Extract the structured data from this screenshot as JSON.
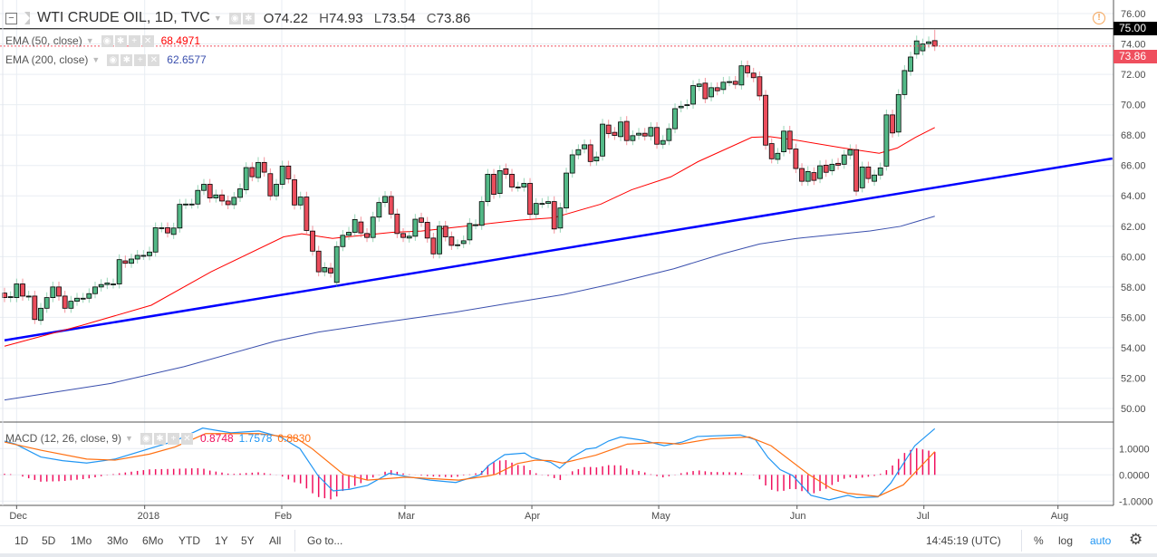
{
  "header": {
    "symbol": "WTI CRUDE OIL, 1D, TVC",
    "open_label": "O",
    "open": "74.22",
    "high_label": "H",
    "high": "74.93",
    "low_label": "L",
    "low": "73.54",
    "close_label": "C",
    "close": "73.86"
  },
  "indicators": {
    "ema50": {
      "label": "EMA (50, close)",
      "value": "68.4971",
      "color": "#ff0000"
    },
    "ema200": {
      "label": "EMA (200, close)",
      "value": "62.6577",
      "color": "#3a4fad"
    },
    "macd": {
      "label": "MACD (12, 26, close, 9)",
      "hist_value": "0.8748",
      "macd_value": "1.7578",
      "signal_value": "0.8830",
      "hist_color": "#f0105e",
      "macd_color": "#2196f3",
      "signal_color": "#ff7012"
    }
  },
  "price_axis": {
    "labels": [
      "76.00",
      "74.00",
      "72.00",
      "70.00",
      "68.00",
      "66.00",
      "64.00",
      "62.00",
      "60.00",
      "58.00",
      "56.00",
      "54.00",
      "52.00",
      "50.00"
    ],
    "high_line_label": "75.00",
    "last_price_label": "73.86"
  },
  "macd_axis": {
    "labels": [
      "1.0000",
      "0.0000",
      "-1.0000"
    ]
  },
  "time_axis": [
    {
      "label": "Dec",
      "day": 2
    },
    {
      "label": "2018",
      "day": 23.2
    },
    {
      "label": "Feb",
      "day": 45.9
    },
    {
      "label": "Mar",
      "day": 66.3
    },
    {
      "label": "Apr",
      "day": 87.3
    },
    {
      "label": "May",
      "day": 108.3
    },
    {
      "label": "Jun",
      "day": 131.2
    },
    {
      "label": "Jul",
      "day": 152.2
    },
    {
      "label": "Aug",
      "day": 174.4
    }
  ],
  "toolbar": {
    "ranges": [
      "1D",
      "5D",
      "1Mo",
      "3Mo",
      "6Mo",
      "YTD",
      "1Y",
      "5Y",
      "All"
    ],
    "goto": "Go to...",
    "clock": "14:45:19 (UTC)",
    "percent": "%",
    "log": "log",
    "auto": "auto"
  },
  "colors": {
    "up": "#53b987",
    "down": "#eb4d5c",
    "trendline": "#0000ff",
    "last_price": "#ef4f5e",
    "accent": "#2196f3"
  },
  "chart_data": [
    {
      "type": "candlestick",
      "title": "WTI CRUDE OIL, 1D, TVC",
      "ylim": [
        49,
        76.5
      ],
      "grid": true,
      "note_fields": "ohlc given as [open, close] per trading day; last bar full OHLC in header",
      "ohlc": [
        [
          57.6,
          57.3
        ],
        [
          57.3,
          57.36
        ],
        [
          57.3,
          58.2
        ],
        [
          58.2,
          57.4
        ],
        [
          57.4,
          57.4
        ],
        [
          57.4,
          55.86
        ],
        [
          55.8,
          56.6
        ],
        [
          56.6,
          57.3
        ],
        [
          57.3,
          58.0
        ],
        [
          58.0,
          57.4
        ],
        [
          57.4,
          56.6
        ],
        [
          56.6,
          57.06
        ],
        [
          57.06,
          57.26
        ],
        [
          57.26,
          57.26
        ],
        [
          57.26,
          57.56
        ],
        [
          57.56,
          58.0
        ],
        [
          58.0,
          58.16
        ],
        [
          58.16,
          58.26
        ],
        [
          58.2,
          58.2
        ],
        [
          58.2,
          59.8
        ],
        [
          59.72,
          59.56
        ],
        [
          59.56,
          59.84
        ],
        [
          59.84,
          60.08
        ],
        [
          60.08,
          60.08
        ],
        [
          60.06,
          60.3
        ],
        [
          60.3,
          61.9
        ],
        [
          61.9,
          61.9
        ],
        [
          61.9,
          61.56
        ],
        [
          61.46,
          61.88
        ],
        [
          61.88,
          63.44
        ],
        [
          63.44,
          63.46
        ],
        [
          63.46,
          63.46
        ],
        [
          63.46,
          64.36
        ],
        [
          64.36,
          64.76
        ],
        [
          64.76,
          63.86
        ],
        [
          63.86,
          64.06
        ],
        [
          64.06,
          63.66
        ],
        [
          63.66,
          63.42
        ],
        [
          63.42,
          63.9
        ],
        [
          63.9,
          64.46
        ],
        [
          64.4,
          65.86
        ],
        [
          65.86,
          65.26
        ],
        [
          65.2,
          66.2
        ],
        [
          66.2,
          65.56
        ],
        [
          65.46,
          64.0
        ],
        [
          64.0,
          64.76
        ],
        [
          64.76,
          65.96
        ],
        [
          65.96,
          65.12
        ],
        [
          65.06,
          63.4
        ],
        [
          63.4,
          63.92
        ],
        [
          63.92,
          61.72
        ],
        [
          61.68,
          60.36
        ],
        [
          60.36,
          59.0
        ],
        [
          59.0,
          59.28
        ],
        [
          59.24,
          58.92
        ],
        [
          58.3,
          60.66
        ],
        [
          60.66,
          61.4
        ],
        [
          61.4,
          61.6
        ],
        [
          61.6,
          62.44
        ],
        [
          62.28,
          61.56
        ],
        [
          61.52,
          61.26
        ],
        [
          61.26,
          62.6
        ],
        [
          62.6,
          63.56
        ],
        [
          63.56,
          63.96
        ],
        [
          63.96,
          62.8
        ],
        [
          62.8,
          61.52
        ],
        [
          61.52,
          61.26
        ],
        [
          61.22,
          61.34
        ],
        [
          61.34,
          62.46
        ],
        [
          62.54,
          62.26
        ],
        [
          62.26,
          61.22
        ],
        [
          61.22,
          60.18
        ],
        [
          60.18,
          62.0
        ],
        [
          62.0,
          61.3
        ],
        [
          61.3,
          60.74
        ],
        [
          60.78,
          60.78
        ],
        [
          60.86,
          61.04
        ],
        [
          61.1,
          62.18
        ],
        [
          62.1,
          62.1
        ],
        [
          62.06,
          63.62
        ],
        [
          63.62,
          65.42
        ],
        [
          65.42,
          64.1
        ],
        [
          64.16,
          65.66
        ],
        [
          65.78,
          65.42
        ],
        [
          65.42,
          64.58
        ],
        [
          64.58,
          64.58
        ],
        [
          64.58,
          64.82
        ],
        [
          64.82,
          62.78
        ],
        [
          62.78,
          63.5
        ],
        [
          63.5,
          63.5
        ],
        [
          63.5,
          63.62
        ],
        [
          63.62,
          61.82
        ],
        [
          61.88,
          63.2
        ],
        [
          63.2,
          65.5
        ],
        [
          65.5,
          66.7
        ],
        [
          66.7,
          67.04
        ],
        [
          67.1,
          67.36
        ],
        [
          67.36,
          66.26
        ],
        [
          66.3,
          66.56
        ],
        [
          66.62,
          68.72
        ],
        [
          68.66,
          68.1
        ],
        [
          68.18,
          67.98
        ],
        [
          67.9,
          68.86
        ],
        [
          68.9,
          67.64
        ],
        [
          67.64,
          67.96
        ],
        [
          68.0,
          68.12
        ],
        [
          68.12,
          67.94
        ],
        [
          67.94,
          68.5
        ],
        [
          68.5,
          67.4
        ],
        [
          67.4,
          67.64
        ],
        [
          67.64,
          68.42
        ],
        [
          68.42,
          69.74
        ],
        [
          69.8,
          69.9
        ],
        [
          70.0,
          70.0
        ],
        [
          70.04,
          71.26
        ],
        [
          71.2,
          71.36
        ],
        [
          71.42,
          70.4
        ],
        [
          70.52,
          71.12
        ],
        [
          71.12,
          70.92
        ],
        [
          71.0,
          71.48
        ],
        [
          71.52,
          71.52
        ],
        [
          71.54,
          71.34
        ],
        [
          71.3,
          72.56
        ],
        [
          72.56,
          72.1
        ],
        [
          72.08,
          71.78
        ],
        [
          71.84,
          70.58
        ],
        [
          70.62,
          67.34
        ],
        [
          67.44,
          66.44
        ],
        [
          66.4,
          66.8
        ],
        [
          66.9,
          68.26
        ],
        [
          68.26,
          67.08
        ],
        [
          67.08,
          65.8
        ],
        [
          65.8,
          64.96
        ],
        [
          64.96,
          65.6
        ],
        [
          65.53,
          65.02
        ],
        [
          65.14,
          65.98
        ],
        [
          66.02,
          65.55
        ],
        [
          65.66,
          66.08
        ],
        [
          66.14,
          66.02
        ],
        [
          66.08,
          66.69
        ],
        [
          66.69,
          67.04
        ],
        [
          67.04,
          64.31
        ],
        [
          64.53,
          65.9
        ],
        [
          65.9,
          65.14
        ],
        [
          64.96,
          65.37
        ],
        [
          65.37,
          65.84
        ],
        [
          65.96,
          69.33
        ],
        [
          69.33,
          68.14
        ],
        [
          68.2,
          70.67
        ],
        [
          70.67,
          72.25
        ],
        [
          72.2,
          73.14
        ],
        [
          73.33,
          74.2
        ],
        [
          73.55,
          74.0
        ],
        [
          74.02,
          74.14
        ],
        [
          74.22,
          73.86
        ]
      ],
      "ema50": [
        [
          0,
          54.1
        ],
        [
          12.8,
          55.47
        ],
        [
          24.3,
          56.8
        ],
        [
          34.2,
          59.0
        ],
        [
          46.2,
          61.3
        ],
        [
          49.2,
          61.5
        ],
        [
          54.3,
          61.2
        ],
        [
          64.2,
          61.6
        ],
        [
          69,
          61.68
        ],
        [
          85.2,
          62.4
        ],
        [
          90.8,
          62.55
        ],
        [
          98.7,
          63.45
        ],
        [
          103.8,
          64.4
        ],
        [
          110.3,
          65.25
        ],
        [
          114.8,
          66.25
        ],
        [
          123.7,
          67.85
        ],
        [
          126.7,
          67.9
        ],
        [
          131.3,
          67.65
        ],
        [
          138.8,
          67.15
        ],
        [
          144.8,
          66.8
        ],
        [
          147.8,
          67.15
        ],
        [
          150.8,
          67.85
        ],
        [
          154,
          68.5
        ]
      ],
      "ema200": [
        [
          0,
          50.56
        ],
        [
          17.6,
          51.65
        ],
        [
          29.7,
          52.75
        ],
        [
          44.8,
          54.43
        ],
        [
          52,
          55.03
        ],
        [
          62,
          55.63
        ],
        [
          74.3,
          56.32
        ],
        [
          83.4,
          56.92
        ],
        [
          92.5,
          57.5
        ],
        [
          100.6,
          58.2
        ],
        [
          110.8,
          59.2
        ],
        [
          119,
          60.2
        ],
        [
          125,
          60.83
        ],
        [
          131,
          61.19
        ],
        [
          143.3,
          61.69
        ],
        [
          148.3,
          61.99
        ],
        [
          154,
          62.66
        ]
      ],
      "trendline": [
        [
          0,
          54.49
        ],
        [
          183.4,
          66.46
        ]
      ],
      "high_line": 75.0,
      "last_price": 73.86
    },
    {
      "type": "line",
      "title": "MACD (12, 26, close, 9)",
      "ylim": [
        -1.2,
        1.9
      ],
      "macd": [
        [
          0,
          1.29
        ],
        [
          1.8,
          1.17
        ],
        [
          6,
          0.68
        ],
        [
          9.6,
          0.54
        ],
        [
          13.6,
          0.45
        ],
        [
          18.3,
          0.6
        ],
        [
          24,
          1.0
        ],
        [
          28.2,
          1.29
        ],
        [
          32.8,
          1.78
        ],
        [
          37.5,
          1.6
        ],
        [
          42.1,
          1.67
        ],
        [
          45.7,
          1.44
        ],
        [
          48.9,
          1.0
        ],
        [
          51.9,
          -0.03
        ],
        [
          54.4,
          -0.61
        ],
        [
          57.1,
          -0.55
        ],
        [
          60.1,
          -0.4
        ],
        [
          63.7,
          0.06
        ],
        [
          66.4,
          -0.06
        ],
        [
          70.5,
          -0.2
        ],
        [
          74.7,
          -0.29
        ],
        [
          78.7,
          0.0
        ],
        [
          80.2,
          0.37
        ],
        [
          82.8,
          0.77
        ],
        [
          86.1,
          0.83
        ],
        [
          87.3,
          0.66
        ],
        [
          90.4,
          0.48
        ],
        [
          91.9,
          0.25
        ],
        [
          93.9,
          0.66
        ],
        [
          96.3,
          0.98
        ],
        [
          97.9,
          1.03
        ],
        [
          100,
          1.29
        ],
        [
          102,
          1.44
        ],
        [
          105.6,
          1.32
        ],
        [
          109.2,
          1.11
        ],
        [
          112.2,
          1.25
        ],
        [
          114.7,
          1.46
        ],
        [
          121.8,
          1.52
        ],
        [
          124.3,
          1.34
        ],
        [
          126.4,
          0.66
        ],
        [
          128.4,
          0.2
        ],
        [
          130.5,
          -0.03
        ],
        [
          133.5,
          -0.78
        ],
        [
          136.5,
          -0.95
        ],
        [
          139.6,
          -0.78
        ],
        [
          141.1,
          -0.87
        ],
        [
          144.6,
          -0.84
        ],
        [
          146.7,
          -0.32
        ],
        [
          150.7,
          1.11
        ],
        [
          154,
          1.7578
        ]
      ],
      "signal": [
        [
          0,
          1.25
        ],
        [
          6,
          0.94
        ],
        [
          13.6,
          0.6
        ],
        [
          18.3,
          0.56
        ],
        [
          24,
          0.79
        ],
        [
          28.2,
          1.06
        ],
        [
          33.3,
          1.57
        ],
        [
          42.1,
          1.57
        ],
        [
          48.3,
          1.4
        ],
        [
          50.9,
          1.0
        ],
        [
          56.1,
          0.02
        ],
        [
          60.1,
          -0.2
        ],
        [
          66.4,
          -0.09
        ],
        [
          75.2,
          -0.2
        ],
        [
          79.8,
          -0.05
        ],
        [
          81.3,
          0.02
        ],
        [
          84.9,
          0.43
        ],
        [
          87.9,
          0.56
        ],
        [
          90.4,
          0.54
        ],
        [
          92.4,
          0.45
        ],
        [
          97.9,
          0.75
        ],
        [
          103.1,
          1.17
        ],
        [
          108.2,
          1.23
        ],
        [
          111.8,
          1.17
        ],
        [
          116.9,
          1.37
        ],
        [
          123.3,
          1.44
        ],
        [
          126.9,
          1.11
        ],
        [
          133.1,
          0.02
        ],
        [
          137.1,
          -0.55
        ],
        [
          139.6,
          -0.7
        ],
        [
          144.6,
          -0.82
        ],
        [
          148.8,
          -0.38
        ],
        [
          154,
          0.883
        ]
      ]
    }
  ]
}
